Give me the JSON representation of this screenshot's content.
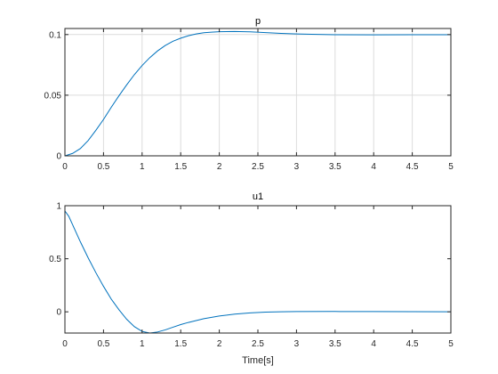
{
  "figure": {
    "background": "#ffffff",
    "axis_color": "#262626",
    "grid_color": "#dcdcdc",
    "line_color": "#0072bd"
  },
  "chart_data": [
    {
      "type": "line",
      "title": "p",
      "xlabel": "",
      "ylabel": "",
      "xlim": [
        0,
        5
      ],
      "ylim": [
        0,
        0.105
      ],
      "xticks": [
        0,
        0.5,
        1,
        1.5,
        2,
        2.5,
        3,
        3.5,
        4,
        4.5,
        5
      ],
      "xtick_labels": [
        "0",
        "0.5",
        "1",
        "1.5",
        "2",
        "2.5",
        "3",
        "3.5",
        "4",
        "4.5",
        "5"
      ],
      "yticks": [
        0,
        0.05,
        0.1
      ],
      "ytick_labels": [
        "0",
        "0.05",
        "0.1"
      ],
      "grid": true,
      "series": [
        {
          "x": [
            0,
            0.1,
            0.2,
            0.3,
            0.4,
            0.5,
            0.6,
            0.7,
            0.8,
            0.9,
            1.0,
            1.1,
            1.2,
            1.3,
            1.4,
            1.5,
            1.6,
            1.7,
            1.8,
            1.9,
            2.0,
            2.2,
            2.4,
            2.6,
            2.8,
            3.0,
            3.2,
            3.5,
            4.0,
            4.5,
            5.0
          ],
          "y": [
            0,
            0.002,
            0.006,
            0.0125,
            0.021,
            0.03,
            0.04,
            0.0495,
            0.0585,
            0.067,
            0.0745,
            0.081,
            0.0865,
            0.091,
            0.0945,
            0.097,
            0.099,
            0.1005,
            0.1015,
            0.102,
            0.1023,
            0.1025,
            0.1022,
            0.1016,
            0.101,
            0.1005,
            0.1002,
            0.0999,
            0.0998,
            0.0999,
            0.0999
          ]
        }
      ]
    },
    {
      "type": "line",
      "title": "u1",
      "xlabel": "Time[s]",
      "ylabel": "",
      "xlim": [
        0,
        5
      ],
      "ylim": [
        -0.2,
        1
      ],
      "xticks": [
        0,
        0.5,
        1,
        1.5,
        2,
        2.5,
        3,
        3.5,
        4,
        4.5,
        5
      ],
      "xtick_labels": [
        "0",
        "0.5",
        "1",
        "1.5",
        "2",
        "2.5",
        "3",
        "3.5",
        "4",
        "4.5",
        "5"
      ],
      "yticks": [
        0,
        0.5,
        1
      ],
      "ytick_labels": [
        "0",
        "0.5",
        "1"
      ],
      "grid": false,
      "series": [
        {
          "x": [
            0,
            0.0,
            0.05,
            0.1,
            0.2,
            0.3,
            0.4,
            0.5,
            0.6,
            0.7,
            0.8,
            0.9,
            1.0,
            1.1,
            1.2,
            1.3,
            1.4,
            1.5,
            1.6,
            1.8,
            2.0,
            2.2,
            2.4,
            2.6,
            2.8,
            3.0,
            3.5,
            4.0,
            4.5,
            5.0
          ],
          "y": [
            -0.2,
            0.95,
            0.9,
            0.82,
            0.66,
            0.51,
            0.37,
            0.24,
            0.12,
            0.02,
            -0.07,
            -0.14,
            -0.185,
            -0.2,
            -0.19,
            -0.17,
            -0.145,
            -0.12,
            -0.1,
            -0.065,
            -0.04,
            -0.022,
            -0.01,
            -0.003,
            0.0,
            0.002,
            0.003,
            0.002,
            0.001,
            0.0
          ]
        }
      ]
    }
  ]
}
